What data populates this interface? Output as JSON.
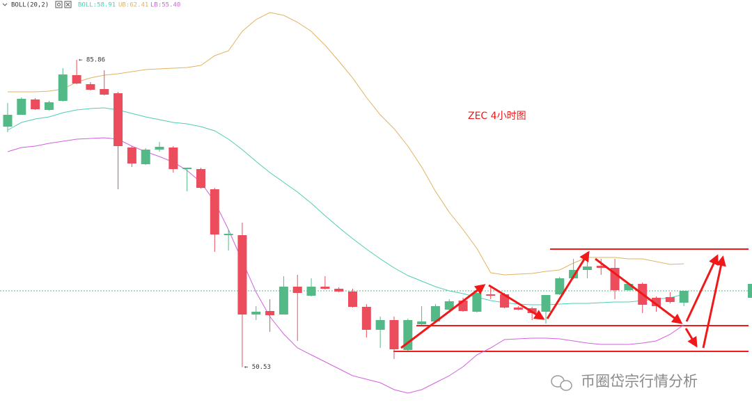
{
  "chart_data": {
    "type": "candlestick",
    "indicator": "BOLL(20,2)",
    "title": "ZEC   4小时图",
    "watermark": "币圈岱宗行情分析",
    "ylim": [
      45.14,
      92.74
    ],
    "up_color": "#53b987",
    "down_color": "#eb4d5c",
    "open": [
      78.18,
      79.54,
      81.3,
      80.1,
      81.14,
      84.1,
      83.06,
      82.5,
      82.02,
      75.78,
      73.86,
      75.54,
      75.78,
      73.3,
      73.3,
      70.98,
      65.7,
      65.7,
      56.58,
      56.98,
      56.58,
      59.78,
      58.74,
      59.78,
      59.54,
      59.22,
      57.46,
      54.82,
      55.94,
      52.5,
      55.46,
      55.78,
      57.14,
      58.18,
      56.9,
      58.9,
      58.9,
      57.38,
      57.3,
      56.9,
      58.9,
      60.74,
      61.7,
      62.18,
      61.94,
      59.38,
      60.1,
      58.5,
      58.58,
      57.94
    ],
    "high": [
      80.9,
      81.54,
      81.46,
      81.14,
      84.9,
      85.86,
      83.3,
      84.66,
      82.18,
      75.94,
      75.7,
      76.42,
      75.94,
      73.46,
      73.46,
      71.14,
      66.34,
      67.14,
      57.54,
      58.34,
      60.98,
      61.14,
      60.74,
      60.98,
      59.7,
      59.54,
      57.78,
      56.34,
      56.34,
      56.1,
      57.54,
      57.78,
      58.34,
      58.5,
      59.22,
      59.94,
      59.06,
      57.54,
      57.46,
      58.82,
      60.9,
      62.98,
      63.78,
      62.98,
      62.98,
      60.26,
      60.26,
      58.66,
      59.14,
      59.3
    ],
    "low": [
      77.54,
      79.54,
      80.1,
      80.02,
      81.06,
      83.06,
      82.34,
      81.78,
      70.98,
      73.54,
      73.78,
      75.3,
      72.9,
      70.74,
      71.06,
      63.78,
      63.94,
      50.53,
      55.94,
      54.58,
      56.58,
      53.54,
      58.66,
      59.46,
      59.14,
      57.38,
      53.94,
      52.74,
      51.46,
      52.42,
      55.38,
      55.7,
      57.06,
      56.9,
      56.82,
      58.34,
      57.3,
      57.06,
      55.94,
      55.54,
      58.82,
      60.66,
      60.74,
      61.14,
      58.34,
      59.3,
      56.74,
      56.9,
      57.86,
      57.54
    ],
    "close": [
      79.54,
      81.38,
      80.18,
      80.98,
      84.18,
      83.14,
      82.42,
      81.86,
      75.94,
      73.94,
      75.54,
      75.86,
      73.3,
      73.46,
      71.14,
      65.78,
      65.86,
      56.58,
      56.9,
      56.5,
      59.78,
      59.06,
      59.78,
      59.54,
      59.22,
      57.46,
      54.82,
      55.94,
      52.58,
      55.94,
      55.78,
      57.54,
      58.1,
      56.98,
      59.06,
      58.74,
      57.38,
      57.14,
      56.74,
      58.82,
      60.74,
      61.7,
      62.1,
      61.94,
      59.38,
      60.1,
      57.7,
      57.54,
      58.02,
      59.3
    ],
    "series": [
      {
        "name": "BOLL:58.91",
        "color": "#4ecdb4",
        "values": [
          77.78,
          78.66,
          79.06,
          79.3,
          79.78,
          80.1,
          80.26,
          80.34,
          80.1,
          79.7,
          79.3,
          78.98,
          78.66,
          78.5,
          78.18,
          77.7,
          76.74,
          75.54,
          74.18,
          72.9,
          71.78,
          70.66,
          69.38,
          67.94,
          66.58,
          65.3,
          64.1,
          62.98,
          61.94,
          61.06,
          60.42,
          59.78,
          59.3,
          58.98,
          58.58,
          58.18,
          57.94,
          57.78,
          57.7,
          57.7,
          57.78,
          57.86,
          57.86,
          57.94,
          58.02,
          58.02,
          58.18,
          58.34,
          58.5,
          58.91
        ]
      },
      {
        "name": "UB:62.41",
        "color": "#e2b262",
        "values": [
          82.18,
          82.18,
          82.18,
          82.26,
          82.5,
          83.3,
          83.78,
          84.1,
          84.26,
          84.5,
          84.74,
          84.82,
          84.9,
          84.98,
          85.22,
          86.34,
          86.9,
          89.14,
          90.5,
          91.3,
          90.98,
          90.18,
          89.14,
          87.54,
          85.7,
          83.78,
          81.54,
          79.54,
          77.94,
          75.94,
          73.54,
          70.74,
          68.34,
          66.34,
          64.18,
          61.38,
          61.14,
          61.22,
          61.3,
          61.54,
          61.7,
          62.5,
          63.14,
          63.14,
          63.14,
          62.98,
          62.98,
          62.66,
          62.34,
          62.41
        ]
      },
      {
        "name": "LB:55.40",
        "color": "#d45fe0",
        "values": [
          75.3,
          75.78,
          75.94,
          76.26,
          76.5,
          76.74,
          76.82,
          76.9,
          76.74,
          75.94,
          75.3,
          74.74,
          74.1,
          73.14,
          71.78,
          69.54,
          66.34,
          62.74,
          59.14,
          56.34,
          54.34,
          52.74,
          51.94,
          51.14,
          50.34,
          49.54,
          49.14,
          48.74,
          47.94,
          47.54,
          47.94,
          48.74,
          49.54,
          50.58,
          51.94,
          52.74,
          53.7,
          53.78,
          53.86,
          53.86,
          53.78,
          53.54,
          53.3,
          53.14,
          53.14,
          53.14,
          53.3,
          53.54,
          54.3,
          55.4
        ]
      }
    ],
    "annotations": [
      {
        "label": "← 85.86",
        "value": 85.86,
        "index": 5
      },
      {
        "label": "← 50.53",
        "value": 50.53,
        "index": 17
      }
    ],
    "levels": [
      64.1,
      55.3,
      52.34
    ],
    "level_color": "#f01818"
  }
}
